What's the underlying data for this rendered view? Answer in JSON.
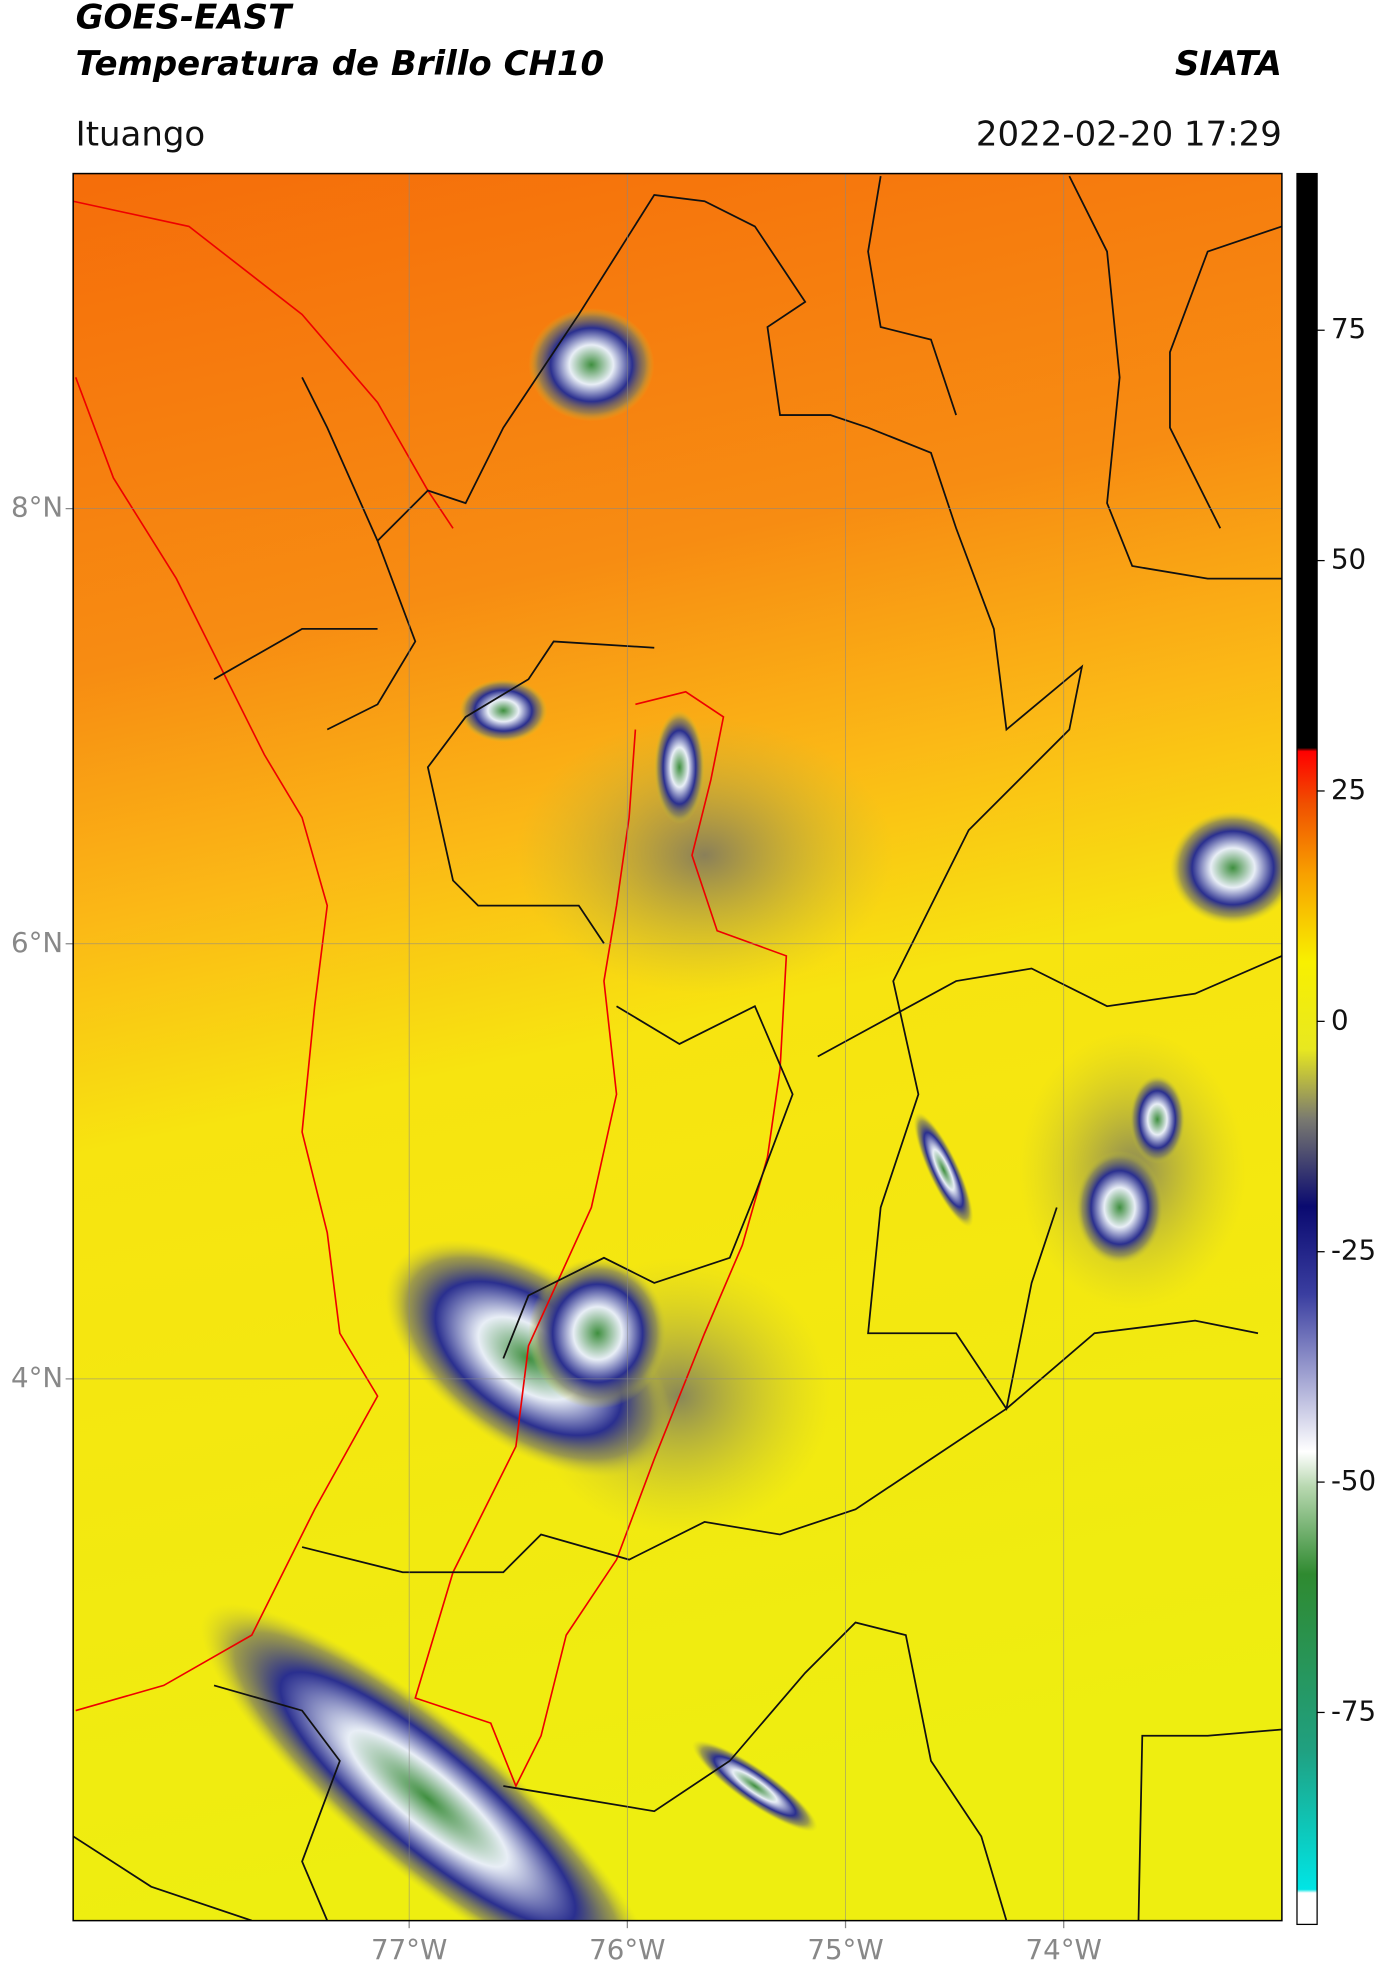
{
  "map": {
    "title": "GOES-EAST",
    "subtitle": "Temperatura de Brillo CH10",
    "brand": "SIATA",
    "location": "Ituango",
    "datetime": "2022-02-20 17:29",
    "xlim": [
      -78.54,
      -73.0
    ],
    "ylim": [
      1.51,
      9.54
    ],
    "xticks": [
      {
        "value": -77,
        "label": "77°W"
      },
      {
        "value": -76,
        "label": "76°W"
      },
      {
        "value": -75,
        "label": "75°W"
      },
      {
        "value": -74,
        "label": "74°W"
      }
    ],
    "yticks": [
      {
        "value": 8,
        "label": "8°N"
      },
      {
        "value": 6,
        "label": "6°N"
      },
      {
        "value": 4,
        "label": "4°N"
      }
    ],
    "colorbar": {
      "lim": [
        -98,
        92
      ],
      "ticks": [
        75,
        50,
        25,
        0,
        -25,
        -50,
        -75
      ]
    }
  }
}
